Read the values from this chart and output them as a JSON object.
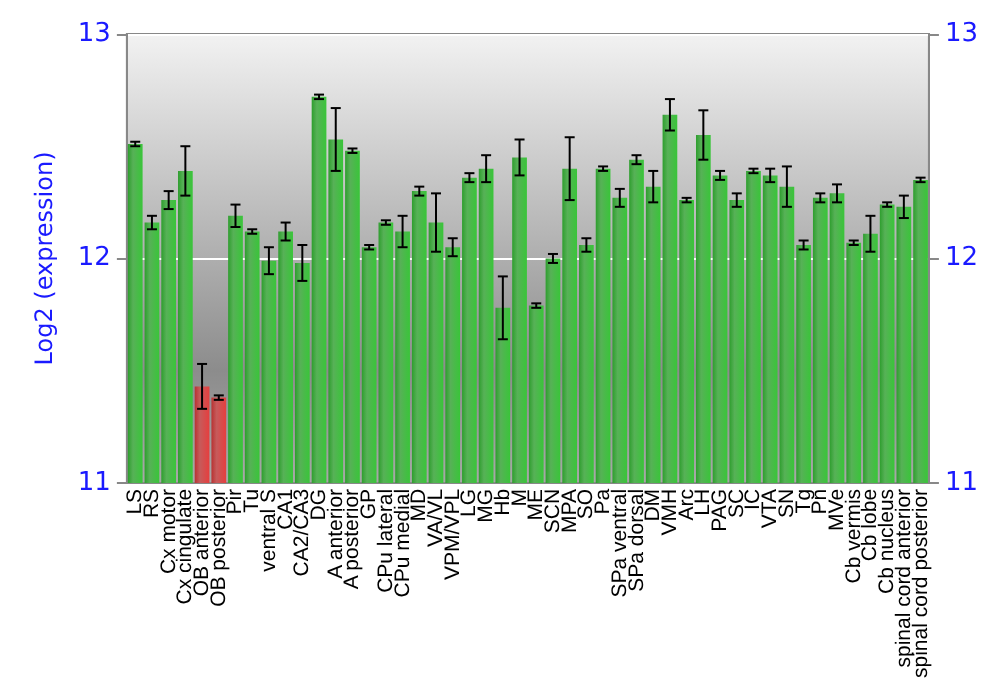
{
  "chart_data": {
    "type": "bar",
    "ylabel": "Log2 (expression)",
    "categories": [
      "LS",
      "RS",
      "Cx motor",
      "Cx cingulate",
      "OB anterior",
      "OB posterior",
      "Pir",
      "Tu",
      "ventral S",
      "CA1",
      "CA2/CA3",
      "DG",
      "A anterior",
      "A posterior",
      "GP",
      "CPu lateral",
      "CPu medial",
      "MD",
      "VA/VL",
      "VPM/VPL",
      "LG",
      "MG",
      "Hb",
      "M",
      "ME",
      "SCN",
      "MPA",
      "SO",
      "Pa",
      "SPa ventral",
      "SPa dorsal",
      "DM",
      "VMH",
      "Arc",
      "LH",
      "PAG",
      "SC",
      "IC",
      "VTA",
      "SN",
      "Tg",
      "Pn",
      "MVe",
      "Cb vermis",
      "Cb lobe",
      "Cb nucleus",
      "spinal cord anterior",
      "spinal cord posterior"
    ],
    "values": [
      12.51,
      12.16,
      12.26,
      12.39,
      11.43,
      11.38,
      12.19,
      12.12,
      11.99,
      12.12,
      11.98,
      12.72,
      12.53,
      12.48,
      12.05,
      12.16,
      12.12,
      12.3,
      12.16,
      12.05,
      12.36,
      12.4,
      11.78,
      12.45,
      11.79,
      12.0,
      12.4,
      12.06,
      12.4,
      12.27,
      12.44,
      12.32,
      12.64,
      12.26,
      12.55,
      12.37,
      12.26,
      12.39,
      12.37,
      12.32,
      12.06,
      12.27,
      12.29,
      12.07,
      12.11,
      12.24,
      12.23,
      12.35
    ],
    "errors": [
      0.01,
      0.03,
      0.04,
      0.11,
      0.1,
      0.01,
      0.05,
      0.01,
      0.06,
      0.04,
      0.08,
      0.01,
      0.14,
      0.01,
      0.01,
      0.01,
      0.07,
      0.02,
      0.13,
      0.04,
      0.02,
      0.06,
      0.14,
      0.08,
      0.01,
      0.02,
      0.14,
      0.03,
      0.01,
      0.04,
      0.02,
      0.07,
      0.07,
      0.01,
      0.11,
      0.02,
      0.03,
      0.01,
      0.03,
      0.09,
      0.02,
      0.02,
      0.04,
      0.01,
      0.08,
      0.01,
      0.05,
      0.01
    ],
    "colors": [
      "#2e9e2e",
      "#2e9e2e",
      "#2e9e2e",
      "#2e9e2e",
      "#b83232",
      "#b83232",
      "#2e9e2e",
      "#2e9e2e",
      "#2e9e2e",
      "#2e9e2e",
      "#2e9e2e",
      "#2e9e2e",
      "#2e9e2e",
      "#2e9e2e",
      "#2e9e2e",
      "#2e9e2e",
      "#2e9e2e",
      "#2e9e2e",
      "#2e9e2e",
      "#2e9e2e",
      "#2e9e2e",
      "#2e9e2e",
      "#2e9e2e",
      "#2e9e2e",
      "#2e9e2e",
      "#2e9e2e",
      "#2e9e2e",
      "#2e9e2e",
      "#2e9e2e",
      "#2e9e2e",
      "#2e9e2e",
      "#2e9e2e",
      "#2e9e2e",
      "#2e9e2e",
      "#2e9e2e",
      "#2e9e2e",
      "#2e9e2e",
      "#2e9e2e",
      "#2e9e2e",
      "#2e9e2e",
      "#2e9e2e",
      "#2e9e2e",
      "#2e9e2e",
      "#2e9e2e",
      "#2e9e2e",
      "#2e9e2e",
      "#2e9e2e",
      "#2e9e2e"
    ],
    "ylim": [
      11,
      13
    ],
    "yticks": [
      11,
      12,
      13
    ],
    "y2lim": [
      11,
      13
    ],
    "y2ticks": [
      11,
      12,
      13
    ],
    "grid": true
  }
}
